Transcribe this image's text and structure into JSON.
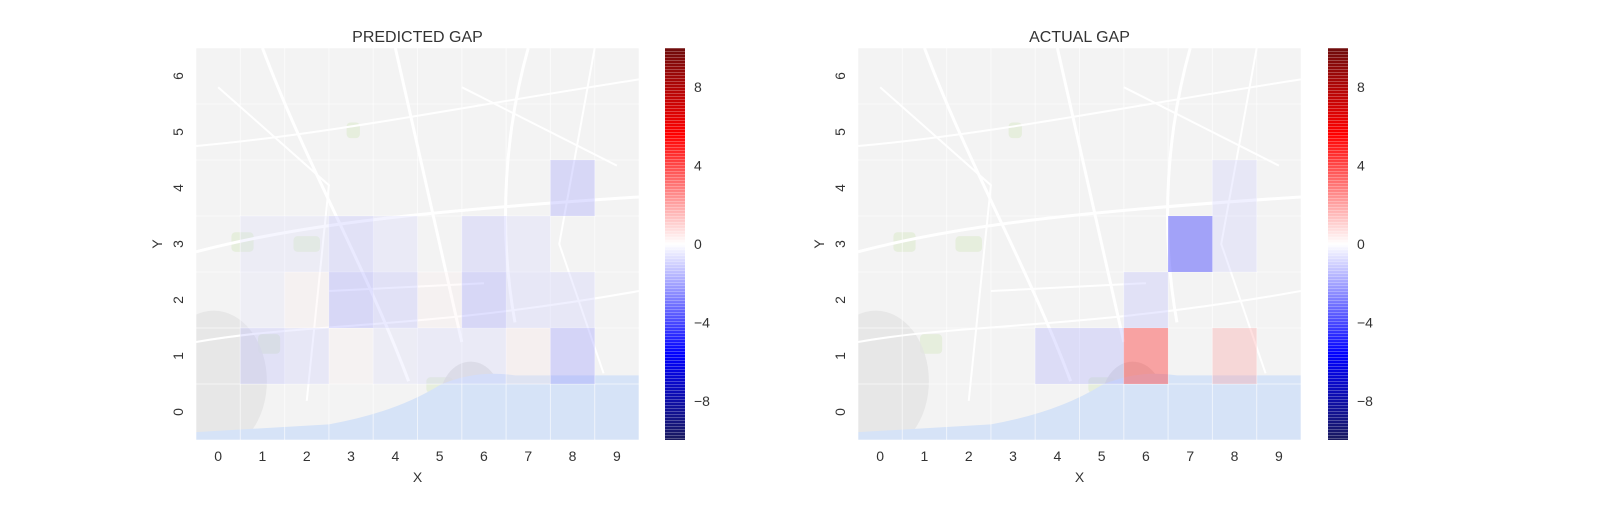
{
  "chart_data": [
    {
      "type": "heatmap",
      "title": "PREDICTED GAP",
      "xlabel": "X",
      "ylabel": "Y",
      "xticks": [
        "0",
        "1",
        "2",
        "3",
        "4",
        "5",
        "6",
        "7",
        "8",
        "9"
      ],
      "yticks": [
        "0",
        "1",
        "2",
        "3",
        "4",
        "5",
        "6"
      ],
      "xlim": [
        -0.5,
        9.5
      ],
      "ylim": [
        -0.5,
        6.5
      ],
      "background": "street map of Porto",
      "colorbar": {
        "min": -10,
        "max": 10,
        "ticks": [
          "-8",
          "-4",
          "0",
          "4",
          "8"
        ],
        "colormap": "seismic"
      },
      "cells": [
        {
          "x": 8,
          "y": 4,
          "value": -2.0
        },
        {
          "x": 1,
          "y": 3,
          "value": -0.8
        },
        {
          "x": 2,
          "y": 3,
          "value": -0.8
        },
        {
          "x": 3,
          "y": 3,
          "value": -1.5
        },
        {
          "x": 4,
          "y": 3,
          "value": -1.0
        },
        {
          "x": 6,
          "y": 3,
          "value": -1.5
        },
        {
          "x": 7,
          "y": 3,
          "value": -1.0
        },
        {
          "x": 1,
          "y": 2,
          "value": -0.6
        },
        {
          "x": 2,
          "y": 2,
          "value": 0.4
        },
        {
          "x": 3,
          "y": 2,
          "value": -2.0
        },
        {
          "x": 4,
          "y": 2,
          "value": -1.5
        },
        {
          "x": 5,
          "y": 2,
          "value": 0.4
        },
        {
          "x": 6,
          "y": 2,
          "value": -2.0
        },
        {
          "x": 7,
          "y": 2,
          "value": -1.2
        },
        {
          "x": 8,
          "y": 2,
          "value": -1.2
        },
        {
          "x": 1,
          "y": 1,
          "value": -1.5
        },
        {
          "x": 2,
          "y": 1,
          "value": -1.2
        },
        {
          "x": 3,
          "y": 1,
          "value": 0.3
        },
        {
          "x": 4,
          "y": 1,
          "value": -0.8
        },
        {
          "x": 5,
          "y": 1,
          "value": -1.0
        },
        {
          "x": 6,
          "y": 1,
          "value": -1.0
        },
        {
          "x": 7,
          "y": 1,
          "value": 0.5
        },
        {
          "x": 8,
          "y": 1,
          "value": -2.2
        }
      ]
    },
    {
      "type": "heatmap",
      "title": "ACTUAL GAP",
      "xlabel": "X",
      "ylabel": "Y",
      "xticks": [
        "0",
        "1",
        "2",
        "3",
        "4",
        "5",
        "6",
        "7",
        "8",
        "9"
      ],
      "yticks": [
        "0",
        "1",
        "2",
        "3",
        "4",
        "5",
        "6"
      ],
      "xlim": [
        -0.5,
        9.5
      ],
      "ylim": [
        -0.5,
        6.5
      ],
      "background": "street map of Porto",
      "colorbar": {
        "min": -10,
        "max": 10,
        "ticks": [
          "-8",
          "-4",
          "0",
          "4",
          "8"
        ],
        "colormap": "seismic"
      },
      "cells": [
        {
          "x": 8,
          "y": 4,
          "value": -1.2
        },
        {
          "x": 7,
          "y": 3,
          "value": -4.0
        },
        {
          "x": 8,
          "y": 3,
          "value": -1.2
        },
        {
          "x": 6,
          "y": 2,
          "value": -1.5
        },
        {
          "x": 4,
          "y": 1,
          "value": -1.8
        },
        {
          "x": 5,
          "y": 1,
          "value": -1.8
        },
        {
          "x": 6,
          "y": 1,
          "value": 4.0
        },
        {
          "x": 8,
          "y": 1,
          "value": 2.0
        }
      ]
    }
  ]
}
